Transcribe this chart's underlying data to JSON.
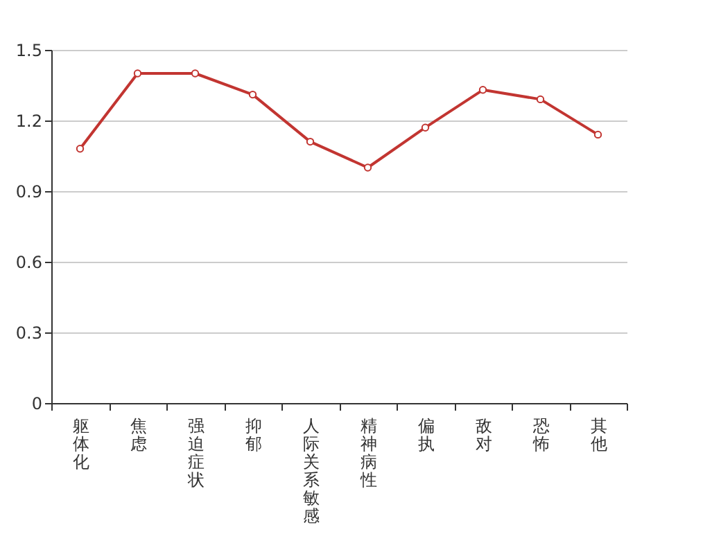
{
  "chart_data": {
    "type": "line",
    "categories": [
      "躯体化",
      "焦虑",
      "强迫症状",
      "抑郁",
      "人际关系敏感",
      "精神病性",
      "偏执",
      "敌对",
      "恐怖",
      "其他"
    ],
    "series": [
      {
        "color": "#c23531",
        "values": [
          1.08,
          1.4,
          1.4,
          1.31,
          1.11,
          1.0,
          1.17,
          1.33,
          1.29,
          1.14
        ]
      }
    ],
    "ylim": [
      0,
      1.5
    ],
    "yticks": [
      0,
      0.3,
      0.6,
      0.9,
      1.2,
      1.5
    ],
    "grid": "y",
    "marker": "circle",
    "line_style": "solid"
  }
}
